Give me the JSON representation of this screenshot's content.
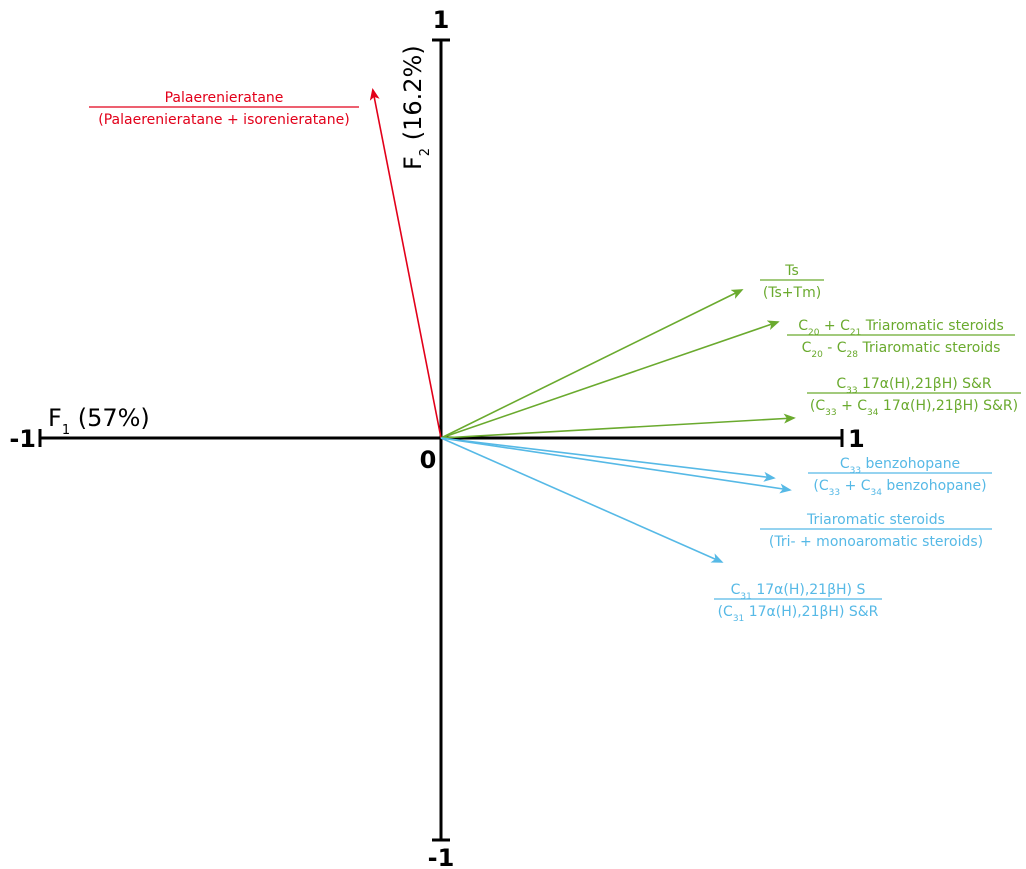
{
  "chart_data": {
    "type": "scatter",
    "title": "",
    "xlabel": "F1 (57%)",
    "ylabel": "F2 (16.2%)",
    "xlim": [
      -1,
      1
    ],
    "ylim": [
      -1,
      1
    ],
    "grid": false,
    "ticks": {
      "x_min": "-1",
      "x_max": "1",
      "y_min": "-1",
      "y_max": "1",
      "origin": "0"
    },
    "colors": {
      "red": "#e2001a",
      "green": "#6aaa2e",
      "blue": "#56b9e6"
    },
    "vectors": [
      {
        "id": "palaeren",
        "color": "red",
        "x": -0.17,
        "y": 0.87,
        "numerator": [
          {
            "t": "Palaerenieratane"
          }
        ],
        "denominator": [
          {
            "t": "(Palaerenieratane + isorenieratane)"
          }
        ]
      },
      {
        "id": "ts",
        "color": "green",
        "x": 0.75,
        "y": 0.37,
        "numerator": [
          {
            "t": "Ts"
          }
        ],
        "denominator": [
          {
            "t": "(Ts+Tm)"
          }
        ]
      },
      {
        "id": "triarom",
        "color": "green",
        "x": 0.84,
        "y": 0.29,
        "numerator": [
          {
            "t": "C"
          },
          {
            "s": "20"
          },
          {
            "t": " + C"
          },
          {
            "s": "21"
          },
          {
            "t": " Triaromatic steroids"
          }
        ],
        "denominator": [
          {
            "t": "C"
          },
          {
            "s": "20"
          },
          {
            "t": " - C"
          },
          {
            "s": "28"
          },
          {
            "t": " Triaromatic steroids"
          }
        ]
      },
      {
        "id": "c33hop",
        "color": "green",
        "x": 0.88,
        "y": 0.05,
        "numerator": [
          {
            "t": "C"
          },
          {
            "s": "33"
          },
          {
            "t": " 17α(H),21βH) S&R"
          }
        ],
        "denominator": [
          {
            "t": "(C"
          },
          {
            "s": "33"
          },
          {
            "t": " + C"
          },
          {
            "s": "34"
          },
          {
            "t": " 17α(H),21βH) S&R)"
          }
        ]
      },
      {
        "id": "benzo_a",
        "color": "blue",
        "x": 0.83,
        "y": -0.1,
        "numerator": [
          {
            "t": "C"
          },
          {
            "s": "33"
          },
          {
            "t": " benzohopane"
          }
        ],
        "denominator": [
          {
            "t": "(C"
          },
          {
            "s": "33"
          },
          {
            "t": " + C"
          },
          {
            "s": "34"
          },
          {
            "t": " benzohopane)"
          }
        ]
      },
      {
        "id": "benzo_b",
        "color": "blue",
        "x": 0.87,
        "y": -0.13,
        "numerator": [
          {
            "t": "Triaromatic steroids"
          }
        ],
        "denominator": [
          {
            "t": "(Tri- + monoaromatic steroids)"
          }
        ]
      },
      {
        "id": "c31hop",
        "color": "blue",
        "x": 0.7,
        "y": -0.31,
        "numerator": [
          {
            "t": "C"
          },
          {
            "s": "31"
          },
          {
            "t": " 17α(H),21βH) S"
          }
        ],
        "denominator": [
          {
            "t": "(C"
          },
          {
            "s": "31"
          },
          {
            "t": " 17α(H),21βH) S&R"
          }
        ]
      }
    ]
  }
}
